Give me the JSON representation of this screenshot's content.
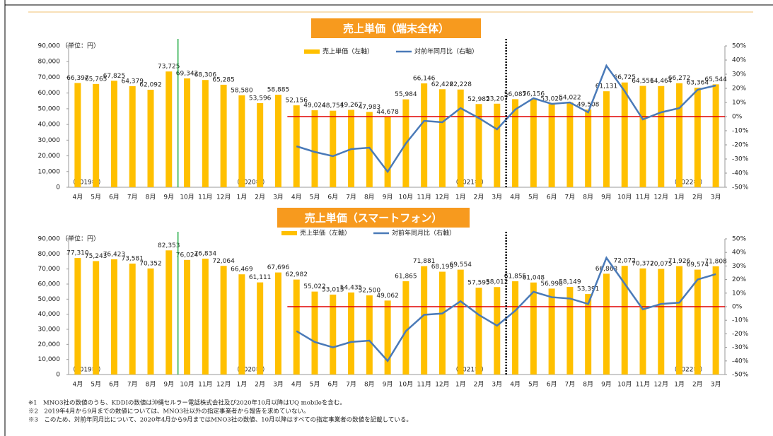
{
  "chart_data": [
    {
      "type": "bar",
      "title": "売上単価（端末全体）",
      "unit_label": "（単位：円）",
      "categories": [
        "4月",
        "5月",
        "6月",
        "7月",
        "8月",
        "9月",
        "10月",
        "11月",
        "12月",
        "1月",
        "2月",
        "3月",
        "4月",
        "5月",
        "6月",
        "7月",
        "8月",
        "9月",
        "10月",
        "11月",
        "12月",
        "1月",
        "2月",
        "3月",
        "4月",
        "5月",
        "6月",
        "7月",
        "8月",
        "9月",
        "10月",
        "11月",
        "12月",
        "1月",
        "2月",
        "3月"
      ],
      "year_labels": [
        "（2019年）",
        null,
        null,
        null,
        null,
        null,
        null,
        null,
        null,
        "（2020年）",
        null,
        null,
        null,
        null,
        null,
        null,
        null,
        null,
        null,
        null,
        null,
        "（2021年）",
        null,
        null,
        null,
        null,
        null,
        null,
        null,
        null,
        null,
        null,
        null,
        "（2022年）",
        null,
        null
      ],
      "series": [
        {
          "name": "売上単価（左軸）",
          "type": "bar",
          "color": "#ffc000",
          "values": [
            66397,
            65765,
            67825,
            64379,
            62092,
            73725,
            69342,
            68306,
            65285,
            58580,
            53596,
            58885,
            52156,
            49024,
            48751,
            49267,
            47983,
            44678,
            55984,
            66146,
            62422,
            62228,
            52982,
            53207,
            56087,
            56156,
            53020,
            54022,
            49508,
            61131,
            66725,
            64551,
            64464,
            66272,
            63364,
            65544
          ],
          "value_labels": [
            "66,397",
            "65,765",
            "67,825",
            "64,379",
            "62,092",
            "73,725",
            "69,342",
            "68,306",
            "65,285",
            "58,580",
            "53,596",
            "58,885",
            "52,156",
            "49,024",
            "48,751",
            "49,267",
            "47,983",
            "44,678",
            "55,984",
            "66,146",
            "62,422",
            "62,228",
            "52,982",
            "53,207",
            "56,087",
            "56,156",
            "53,020",
            "54,022",
            "49,508",
            "61,131",
            "66,725",
            "64,551",
            "64,464",
            "66,272",
            "63,364",
            "65,544"
          ]
        },
        {
          "name": "対前年同月比（右軸）",
          "type": "line",
          "axis": "y2",
          "color": "#4a7ab8",
          "values": [
            null,
            null,
            null,
            null,
            null,
            null,
            null,
            null,
            null,
            null,
            null,
            null,
            -21,
            -25,
            -28,
            -23,
            -22,
            -39,
            -19,
            -3,
            -4,
            6,
            -1,
            -9,
            5,
            13,
            9,
            10,
            3,
            36,
            18,
            -2,
            3,
            6,
            19,
            22
          ]
        }
      ],
      "ylim": [
        0,
        90000
      ],
      "yticks": [
        0,
        {
          "value": 10000,
          "label": "10,000"
        },
        {
          "value": 20000,
          "label": "20,000"
        },
        {
          "value": 30000,
          "label": "30,000"
        },
        {
          "value": 40000,
          "label": "40,000"
        },
        {
          "value": 50000,
          "label": "50,000"
        },
        {
          "value": 60000,
          "label": "60,000"
        },
        {
          "value": 70000,
          "label": "70,000"
        },
        {
          "value": 80000,
          "label": "80,000"
        },
        {
          "value": 90000,
          "label": "90,000"
        }
      ],
      "y2lim": [
        -50,
        50
      ],
      "y2ticks": [
        {
          "value": -50,
          "label": "-50%"
        },
        {
          "value": -40,
          "label": "-40%"
        },
        {
          "value": -30,
          "label": "-30%"
        },
        {
          "value": -20,
          "label": "-20%"
        },
        {
          "value": -10,
          "label": "-10%"
        },
        {
          "value": 0,
          "label": "0%"
        },
        {
          "value": 10,
          "label": "10%"
        },
        {
          "value": 20,
          "label": "20%"
        },
        {
          "value": 30,
          "label": "30%"
        },
        {
          "value": 40,
          "label": "40%"
        },
        {
          "value": 50,
          "label": "50%"
        }
      ]
    },
    {
      "type": "bar",
      "title": "売上単価（スマートフォン）",
      "unit_label": "（単位：円）",
      "categories": [
        "4月",
        "5月",
        "6月",
        "7月",
        "8月",
        "9月",
        "10月",
        "11月",
        "12月",
        "1月",
        "2月",
        "3月",
        "4月",
        "5月",
        "6月",
        "7月",
        "8月",
        "9月",
        "10月",
        "11月",
        "12月",
        "1月",
        "2月",
        "3月",
        "4月",
        "5月",
        "6月",
        "7月",
        "8月",
        "9月",
        "10月",
        "11月",
        "12月",
        "1月",
        "2月",
        "3月"
      ],
      "year_labels": [
        "（2019年）",
        null,
        null,
        null,
        null,
        null,
        null,
        null,
        null,
        "（2020年）",
        null,
        null,
        null,
        null,
        null,
        null,
        null,
        null,
        null,
        null,
        null,
        "（2021年）",
        null,
        null,
        null,
        null,
        null,
        null,
        null,
        null,
        null,
        null,
        null,
        "（2022年）",
        null,
        null
      ],
      "series": [
        {
          "name": "売上単価（左軸）",
          "type": "bar",
          "color": "#ffc000",
          "values": [
            77310,
            75243,
            76423,
            73581,
            70352,
            82353,
            76024,
            76834,
            72064,
            66469,
            61111,
            67696,
            62982,
            55022,
            53015,
            54435,
            52500,
            49062,
            61865,
            71881,
            68199,
            69554,
            57595,
            58012,
            61855,
            61048,
            56998,
            58149,
            53391,
            66863,
            72072,
            70372,
            70075,
            71926,
            69574,
            71808
          ],
          "value_labels": [
            "77,310",
            "75,243",
            "76,423",
            "73,581",
            "70,352",
            "82,353",
            "76,024",
            "76,834",
            "72,064",
            "66,469",
            "61,111",
            "67,696",
            "62,982",
            "55,022",
            "53,015",
            "54,435",
            "52,500",
            "49,062",
            "61,865",
            "71,881",
            "68,199",
            "69,554",
            "57,595",
            "58,012",
            "61,855",
            "61,048",
            "56,998",
            "58,149",
            "53,391",
            "66,863",
            "72,072",
            "70,372",
            "70,075",
            "71,926",
            "69,574",
            "71,808"
          ]
        },
        {
          "name": "対前年同月比（右軸）",
          "type": "line",
          "axis": "y2",
          "color": "#4a7ab8",
          "values": [
            null,
            null,
            null,
            null,
            null,
            null,
            null,
            null,
            null,
            null,
            null,
            null,
            -18,
            -26,
            -30,
            -26,
            -25,
            -40,
            -18,
            -6,
            -5,
            4,
            -6,
            -14,
            -3,
            11,
            7,
            6,
            2,
            36,
            17,
            -2,
            2,
            3,
            20,
            24
          ]
        }
      ],
      "ylim": [
        0,
        90000
      ],
      "yticks": [
        0,
        {
          "value": 10000,
          "label": "10,000"
        },
        {
          "value": 20000,
          "label": "20,000"
        },
        {
          "value": 30000,
          "label": "30,000"
        },
        {
          "value": 40000,
          "label": "40,000"
        },
        {
          "value": 50000,
          "label": "50,000"
        },
        {
          "value": 60000,
          "label": "60,000"
        },
        {
          "value": 70000,
          "label": "70,000"
        },
        {
          "value": 80000,
          "label": "80,000"
        },
        {
          "value": 90000,
          "label": "90,000"
        }
      ],
      "y2lim": [
        -50,
        50
      ],
      "y2ticks": [
        {
          "value": -50,
          "label": "-50%"
        },
        {
          "value": -40,
          "label": "-40%"
        },
        {
          "value": -30,
          "label": "-30%"
        },
        {
          "value": -20,
          "label": "-20%"
        },
        {
          "value": -10,
          "label": "-10%"
        },
        {
          "value": 0,
          "label": "0%"
        },
        {
          "value": 10,
          "label": "10%"
        },
        {
          "value": 20,
          "label": "20%"
        },
        {
          "value": 30,
          "label": "30%"
        },
        {
          "value": 40,
          "label": "40%"
        },
        {
          "value": 50,
          "label": "50%"
        }
      ]
    }
  ],
  "notes": [
    "※1　MNO3社の数値のうち、KDDIの数値は沖縄セルラー電話株式会社及び2020年10月以降はUQ mobileを含む。",
    "※2　2019年4月から9月までの数値については、MNO3社以外の指定事業者から報告を求めていない。",
    "※3　このため、対前年同月比について、2020年4月から9月まではMNO3社の数値、10月以降はすべての指定事業者の数値を記載している。"
  ]
}
